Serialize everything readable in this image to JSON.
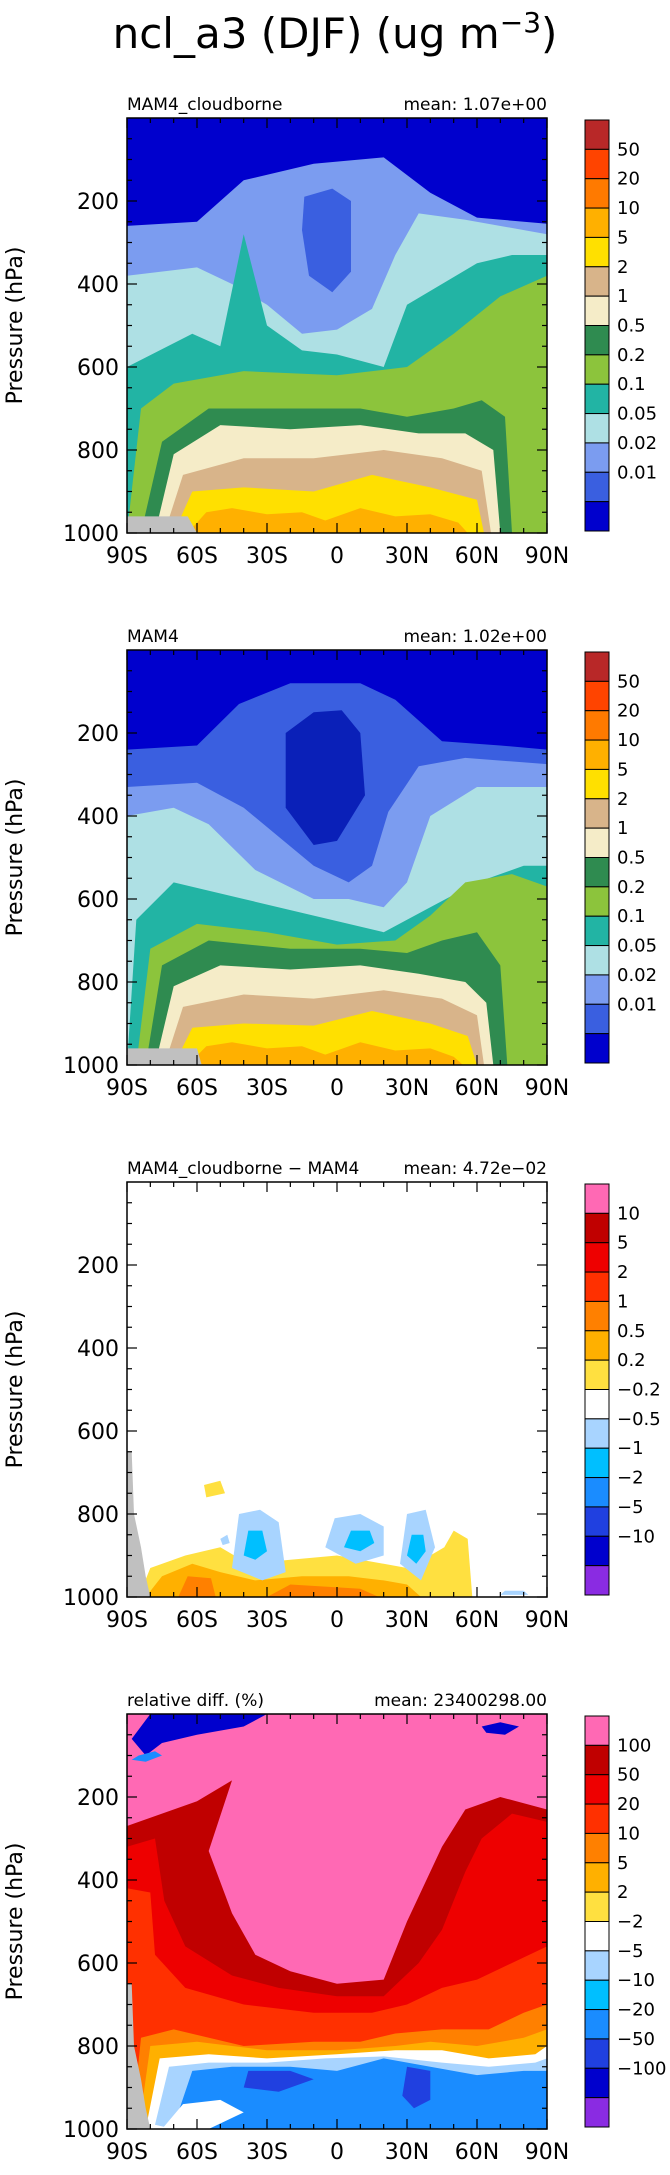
{
  "figure": {
    "title": "ncl_a3 (DJF) (ug m",
    "title_superscript": "−3",
    "title_close": ")"
  },
  "chart_data": [
    {
      "type": "contour",
      "title": "MAM4_cloudborne",
      "mean_text": "mean: 1.07e+00",
      "ylabel": "Pressure (hPa)",
      "x_ticks": [
        "90S",
        "60S",
        "30S",
        "0",
        "30N",
        "60N",
        "90N"
      ],
      "x_range": [
        -90,
        90
      ],
      "y_ticks": [
        200,
        400,
        600,
        800,
        1000
      ],
      "y_range": [
        1000,
        0
      ],
      "colorbar": {
        "labels": [
          "0.01",
          "0.02",
          "0.05",
          "0.1",
          "0.2",
          "0.5",
          "1",
          "2",
          "5",
          "10",
          "20",
          "50"
        ],
        "colors": [
          "#0000cd",
          "#3a5fe0",
          "#7b9cf0",
          "#aee0e4",
          "#22b4a4",
          "#8cc43c",
          "#2f8b50",
          "#f5ecc8",
          "#d8b48a",
          "#ffe000",
          "#ffb000",
          "#ff7a00",
          "#ff4400",
          "#b82828"
        ]
      }
    },
    {
      "type": "contour",
      "title": "MAM4",
      "mean_text": "mean: 1.02e+00",
      "ylabel": "Pressure (hPa)",
      "x_ticks": [
        "90S",
        "60S",
        "30S",
        "0",
        "30N",
        "60N",
        "90N"
      ],
      "x_range": [
        -90,
        90
      ],
      "y_ticks": [
        200,
        400,
        600,
        800,
        1000
      ],
      "y_range": [
        1000,
        0
      ],
      "colorbar": {
        "labels": [
          "0.01",
          "0.02",
          "0.05",
          "0.1",
          "0.2",
          "0.5",
          "1",
          "2",
          "5",
          "10",
          "20",
          "50"
        ],
        "colors": [
          "#0000cd",
          "#3a5fe0",
          "#7b9cf0",
          "#aee0e4",
          "#22b4a4",
          "#8cc43c",
          "#2f8b50",
          "#f5ecc8",
          "#d8b48a",
          "#ffe000",
          "#ffb000",
          "#ff7a00",
          "#ff4400",
          "#b82828"
        ]
      }
    },
    {
      "type": "contour",
      "title": "MAM4_cloudborne − MAM4",
      "mean_text": "mean: 4.72e−02",
      "ylabel": "Pressure (hPa)",
      "x_ticks": [
        "90S",
        "60S",
        "30S",
        "0",
        "30N",
        "60N",
        "90N"
      ],
      "x_range": [
        -90,
        90
      ],
      "y_ticks": [
        200,
        400,
        600,
        800,
        1000
      ],
      "y_range": [
        1000,
        0
      ],
      "colorbar": {
        "labels": [
          "−10",
          "−5",
          "−2",
          "−1",
          "−0.5",
          "−0.2",
          "0.2",
          "0.5",
          "1",
          "2",
          "5",
          "10"
        ],
        "colors": [
          "#8a2be2",
          "#0000cd",
          "#2040e0",
          "#1a8cff",
          "#00bfff",
          "#a8d4ff",
          "#ffffff",
          "#ffe040",
          "#ffb000",
          "#ff8000",
          "#ff3000",
          "#ee0000",
          "#c00000",
          "#ff69b4"
        ]
      }
    },
    {
      "type": "contour",
      "title": "relative diff. (%)",
      "mean_text": "mean: 23400298.00",
      "ylabel": "Pressure (hPa)",
      "x_ticks": [
        "90S",
        "60S",
        "30S",
        "0",
        "30N",
        "60N",
        "90N"
      ],
      "x_range": [
        -90,
        90
      ],
      "y_ticks": [
        200,
        400,
        600,
        800,
        1000
      ],
      "y_range": [
        1000,
        0
      ],
      "colorbar": {
        "labels": [
          "−100",
          "−50",
          "−20",
          "−10",
          "−5",
          "−2",
          "2",
          "5",
          "10",
          "20",
          "50",
          "100"
        ],
        "colors": [
          "#8a2be2",
          "#0000cd",
          "#2040e0",
          "#1a8cff",
          "#00bfff",
          "#a8d4ff",
          "#ffffff",
          "#ffe040",
          "#ffb000",
          "#ff8000",
          "#ff3000",
          "#ee0000",
          "#c00000",
          "#ff69b4"
        ]
      }
    }
  ]
}
